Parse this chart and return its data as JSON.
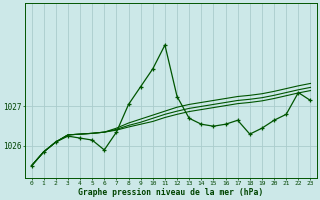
{
  "bg_color": "#cce8e8",
  "grid_color": "#aacccc",
  "line_color": "#005500",
  "text_color": "#004400",
  "xlabel": "Graphe pression niveau de la mer (hPa)",
  "xlim_min": -0.5,
  "xlim_max": 23.5,
  "ylim_min": 1025.2,
  "ylim_max": 1029.6,
  "yticks": [
    1026,
    1027
  ],
  "xticks": [
    0,
    1,
    2,
    3,
    4,
    5,
    6,
    7,
    8,
    9,
    10,
    11,
    12,
    13,
    14,
    15,
    16,
    17,
    18,
    19,
    20,
    21,
    22,
    23
  ],
  "series_main": [
    1025.5,
    1025.85,
    1026.1,
    1026.25,
    1026.2,
    1026.15,
    1025.9,
    1026.35,
    1027.05,
    1027.5,
    1027.95,
    1028.55,
    1027.25,
    1026.7,
    1026.55,
    1026.5,
    1026.55,
    1026.65,
    1026.3,
    1026.45,
    1026.65,
    1026.8,
    1027.35,
    1027.15
  ],
  "series_trend1": [
    1025.5,
    1025.85,
    1026.1,
    1026.28,
    1026.3,
    1026.32,
    1026.35,
    1026.45,
    1026.58,
    1026.68,
    1026.78,
    1026.88,
    1026.98,
    1027.05,
    1027.1,
    1027.15,
    1027.2,
    1027.25,
    1027.28,
    1027.32,
    1027.38,
    1027.45,
    1027.52,
    1027.58
  ],
  "series_trend2": [
    1025.5,
    1025.85,
    1026.1,
    1026.28,
    1026.3,
    1026.32,
    1026.35,
    1026.42,
    1026.52,
    1026.6,
    1026.7,
    1026.8,
    1026.88,
    1026.95,
    1027.0,
    1027.05,
    1027.1,
    1027.15,
    1027.18,
    1027.22,
    1027.28,
    1027.35,
    1027.42,
    1027.48
  ],
  "series_trend3": [
    1025.5,
    1025.85,
    1026.1,
    1026.28,
    1026.3,
    1026.32,
    1026.35,
    1026.4,
    1026.48,
    1026.55,
    1026.62,
    1026.72,
    1026.8,
    1026.87,
    1026.92,
    1026.97,
    1027.02,
    1027.07,
    1027.1,
    1027.14,
    1027.2,
    1027.27,
    1027.34,
    1027.4
  ]
}
